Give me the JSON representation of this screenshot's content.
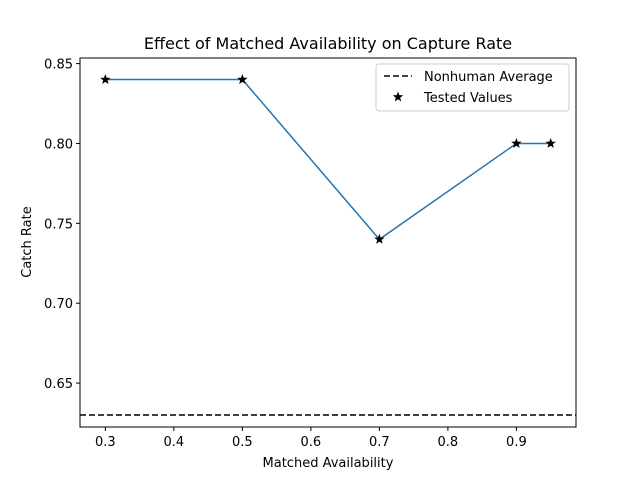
{
  "chart_data": {
    "type": "line",
    "title": "Effect of Matched Availability on Capture Rate",
    "xlabel": "Matched Availability",
    "ylabel": "Catch Rate",
    "xlim": [
      0.263,
      0.987
    ],
    "ylim": [
      0.6225,
      0.8535
    ],
    "xticks": [
      0.3,
      0.4,
      0.5,
      0.6,
      0.7,
      0.8,
      0.9
    ],
    "xtick_labels": [
      "0.3",
      "0.4",
      "0.5",
      "0.6",
      "0.7",
      "0.8",
      "0.9"
    ],
    "yticks": [
      0.65,
      0.7,
      0.75,
      0.8,
      0.85
    ],
    "ytick_labels": [
      "0.65",
      "0.70",
      "0.75",
      "0.80",
      "0.85"
    ],
    "grid": false,
    "legend_position": "top-right",
    "series": [
      {
        "kind": "line",
        "x": [
          0.3,
          0.5,
          0.7,
          0.9,
          0.95
        ],
        "y": [
          0.84,
          0.84,
          0.74,
          0.8,
          0.8
        ],
        "color": "#1f77b4"
      },
      {
        "kind": "scatter",
        "name": "Tested Values",
        "marker": "star",
        "x": [
          0.3,
          0.5,
          0.7,
          0.9,
          0.95
        ],
        "y": [
          0.84,
          0.84,
          0.74,
          0.8,
          0.8
        ],
        "color": "#000000"
      },
      {
        "kind": "hline",
        "name": "Nonhuman Average",
        "style": "dashed",
        "y": 0.63,
        "color": "#000000"
      }
    ]
  }
}
